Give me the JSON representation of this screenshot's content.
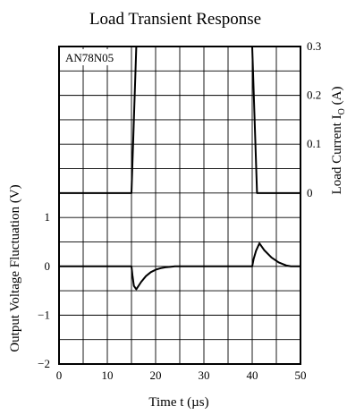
{
  "chart_data": {
    "type": "line",
    "title": "Load Transient Response",
    "annotation": "AN78N05",
    "xlabel": "Time t (µs)",
    "ylabel_left": "Output Voltage Fluctuation (V)",
    "ylabel_right_main": "Load Current  I",
    "ylabel_right_sub": "O",
    "ylabel_right_unit": " (A)",
    "xlim": [
      0,
      50
    ],
    "x_ticks": [
      "0",
      "10",
      "20",
      "30",
      "40",
      "50"
    ],
    "ylim_left": [
      -2,
      4.5
    ],
    "y_ticks_left": [
      "1",
      "0",
      "−1",
      "−2"
    ],
    "y_ticks_right": [
      "0.3",
      "0.2",
      "0.1",
      "0"
    ],
    "grid": true,
    "series": [
      {
        "axis": "right",
        "unit": "A",
        "x": [
          0,
          15,
          16,
          40,
          41,
          50
        ],
        "y": [
          0,
          0,
          0.3,
          0.3,
          0,
          0
        ]
      },
      {
        "axis": "left",
        "unit": "V",
        "x": [
          0,
          15,
          15.2,
          15.5,
          16,
          17,
          18,
          19,
          20,
          21,
          22,
          23,
          24,
          40,
          40.3,
          40.8,
          41.5,
          42.5,
          44,
          45.5,
          47,
          48,
          50
        ],
        "y": [
          0,
          0,
          -0.18,
          -0.4,
          -0.47,
          -0.32,
          -0.2,
          -0.12,
          -0.07,
          -0.04,
          -0.02,
          -0.01,
          0,
          0,
          0.15,
          0.32,
          0.47,
          0.33,
          0.18,
          0.08,
          0.02,
          0,
          0
        ]
      }
    ]
  }
}
